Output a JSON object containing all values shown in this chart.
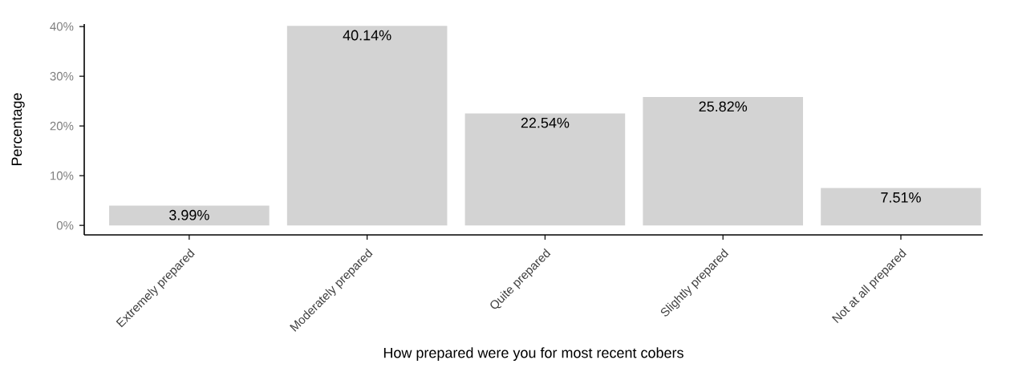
{
  "chart_data": {
    "type": "bar",
    "xlabel": "How prepared were you for most recent cobers",
    "ylabel": "Percentage",
    "categories": [
      "Extremely prepared",
      "Moderately prepared",
      "Quite prepared",
      "Slightly prepared",
      "Not at all prepared"
    ],
    "values": [
      3.99,
      40.14,
      22.54,
      25.82,
      7.51
    ],
    "value_labels": [
      "3.99%",
      "40.14%",
      "22.54%",
      "25.82%",
      "7.51%"
    ],
    "color": "#d3d3d3",
    "ylim": [
      -1.9,
      40.5
    ],
    "yticks": [
      {
        "value": 0,
        "label": "0%"
      },
      {
        "value": 10,
        "label": "10%"
      },
      {
        "value": 20,
        "label": "20%"
      },
      {
        "value": 30,
        "label": "30%"
      },
      {
        "value": 40,
        "label": "40%"
      }
    ],
    "grid": false
  }
}
